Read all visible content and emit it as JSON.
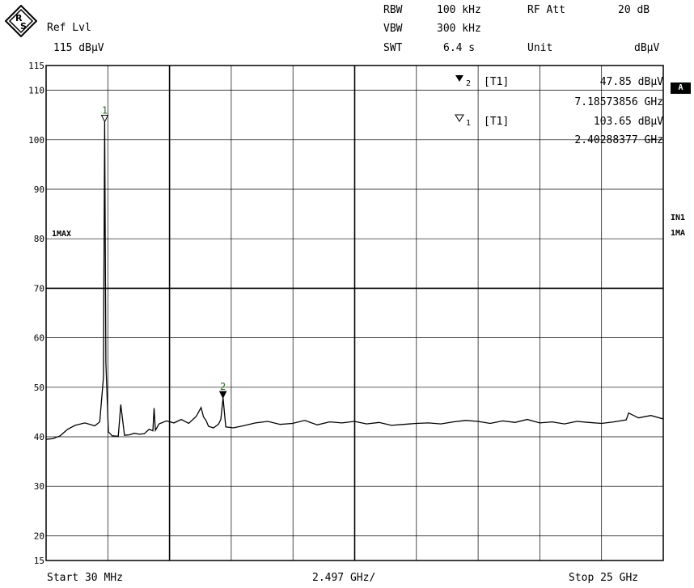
{
  "header": {
    "ref_lvl_label": "Ref Lvl",
    "ref_lvl_value": "115 dBµV",
    "rbw_label": "RBW",
    "rbw_value": "100 kHz",
    "vbw_label": "VBW",
    "vbw_value": "300 kHz",
    "swt_label": "SWT",
    "swt_value": "6.4 s",
    "rf_att_label": "RF Att",
    "rf_att_value": "20 dB",
    "unit_label": "Unit",
    "unit_value": "dBµV"
  },
  "markers": {
    "m2_label": "2",
    "m2_tag": "[T1]",
    "m2_level": "47.85 dBµV",
    "m2_freq": "7.18573856 GHz",
    "m1_label": "1",
    "m1_tag": "[T1]",
    "m1_level": "103.65 dBµV",
    "m1_freq": "2.40288377 GHz"
  },
  "side": {
    "badge": "A",
    "in1": "IN1",
    "ma1": "1MA",
    "trace_label": "1MAX"
  },
  "footer": {
    "start": "Start 30 MHz",
    "div": "2.497 GHz/",
    "stop": "Stop 25 GHz"
  },
  "chart_data": {
    "type": "line",
    "xlabel": "",
    "ylabel": "",
    "x_unit": "GHz",
    "xlim": [
      0.03,
      25.0
    ],
    "ylim": [
      15,
      115
    ],
    "yticks": [
      15,
      20,
      30,
      40,
      50,
      60,
      70,
      80,
      90,
      100,
      110,
      115
    ],
    "grid": true,
    "series": [
      {
        "name": "1MAX",
        "x": [
          0.03,
          0.3,
          0.6,
          0.9,
          1.2,
          1.6,
          2.0,
          2.2,
          2.35,
          2.4,
          2.45,
          2.55,
          2.7,
          2.95,
          3.05,
          3.2,
          3.4,
          3.6,
          3.8,
          4.0,
          4.2,
          4.35,
          4.4,
          4.45,
          4.6,
          4.9,
          5.2,
          5.5,
          5.8,
          6.1,
          6.3,
          6.4,
          6.5,
          6.6,
          6.8,
          7.0,
          7.1,
          7.19,
          7.3,
          7.6,
          8.0,
          8.5,
          9.0,
          9.5,
          10.0,
          10.5,
          11.0,
          11.5,
          12.0,
          12.5,
          13.0,
          13.5,
          14.0,
          14.5,
          15.0,
          15.5,
          16.0,
          16.5,
          17.0,
          17.5,
          18.0,
          18.5,
          19.0,
          19.5,
          20.0,
          20.5,
          21.0,
          21.5,
          22.0,
          22.5,
          23.0,
          23.5,
          23.6,
          24.0,
          24.5,
          25.0
        ],
        "y": [
          39.5,
          39.6,
          40.2,
          41.5,
          42.3,
          42.8,
          42.2,
          43.0,
          52.0,
          103.65,
          55.0,
          41.0,
          40.2,
          40.1,
          46.5,
          40.3,
          40.4,
          40.7,
          40.5,
          40.6,
          41.5,
          41.2,
          45.8,
          41.3,
          42.6,
          43.2,
          42.8,
          43.5,
          42.7,
          44.1,
          45.9,
          44.0,
          43.3,
          42.1,
          41.8,
          42.5,
          43.5,
          47.85,
          42.0,
          41.8,
          42.2,
          42.8,
          43.1,
          42.5,
          42.7,
          43.3,
          42.4,
          43.0,
          42.8,
          43.1,
          42.6,
          42.9,
          42.3,
          42.5,
          42.7,
          42.8,
          42.6,
          43.0,
          43.3,
          43.1,
          42.7,
          43.2,
          42.9,
          43.5,
          42.8,
          43.0,
          42.6,
          43.1,
          42.9,
          42.7,
          43.0,
          43.4,
          44.8,
          43.8,
          44.3,
          43.6
        ]
      }
    ],
    "markers": [
      {
        "id": "1",
        "x": 2.40288377,
        "y": 103.65,
        "style": "open-triangle"
      },
      {
        "id": "2",
        "x": 7.18573856,
        "y": 47.85,
        "style": "filled-triangle"
      }
    ]
  }
}
